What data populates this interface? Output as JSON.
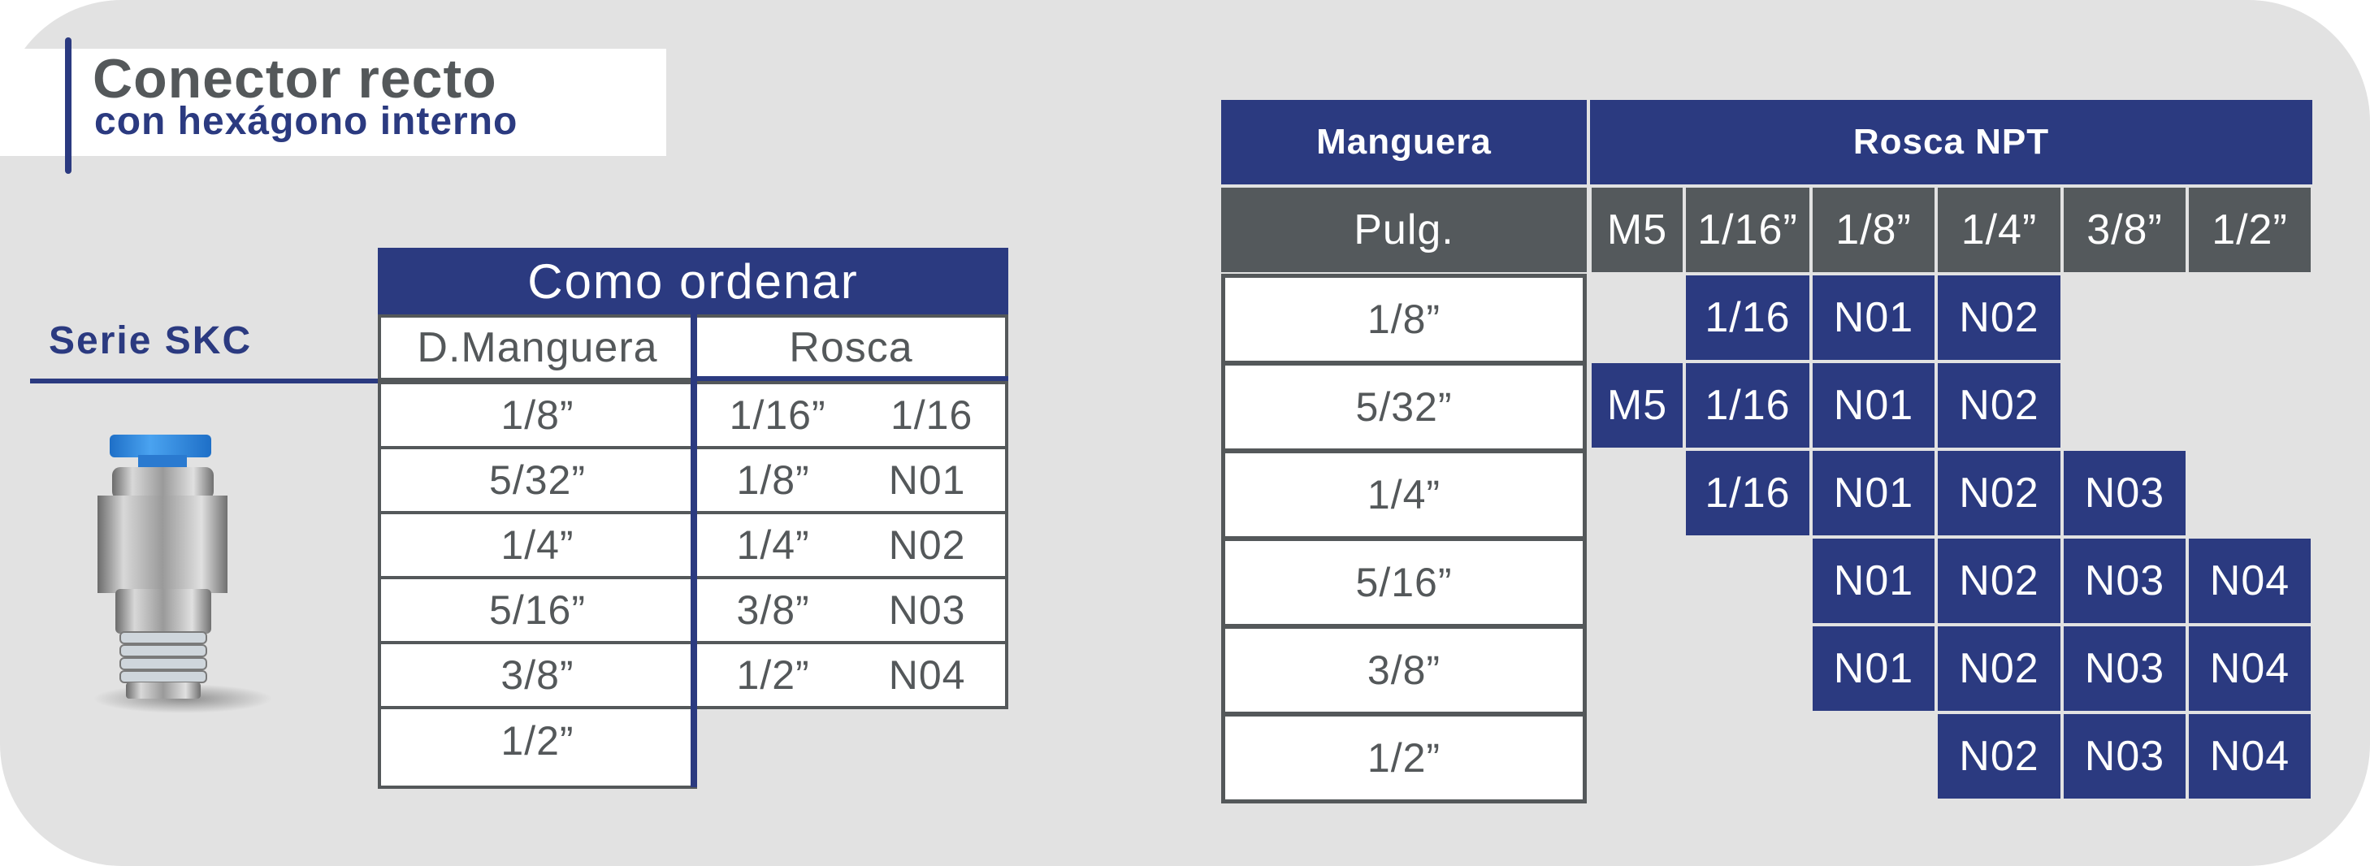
{
  "title": {
    "line1": "Conector recto",
    "line2": "con hexágono interno"
  },
  "series_label": "Serie SKC",
  "colors": {
    "brand_blue": "#2b3a80",
    "header_gray": "#54595c",
    "empty_cell": "#e2e2e2",
    "background": "#e2e2e2"
  },
  "order_table": {
    "title": "Como ordenar",
    "headers": [
      "D.Manguera",
      "Rosca"
    ],
    "manguera": [
      "1/8”",
      "5/32”",
      "1/4”",
      "5/16”",
      "3/8”",
      "1/2”"
    ],
    "rosca": [
      {
        "size": "1/16”",
        "code": "1/16"
      },
      {
        "size": "1/8”",
        "code": "N01"
      },
      {
        "size": "1/4”",
        "code": "N02"
      },
      {
        "size": "3/8”",
        "code": "N03"
      },
      {
        "size": "1/2”",
        "code": "N04"
      }
    ]
  },
  "compat_table": {
    "header_left": "Manguera",
    "header_right": "Rosca NPT",
    "unit_label": "Pulg.",
    "columns": [
      "M5",
      "1/16”",
      "1/8”",
      "1/4”",
      "3/8”",
      "1/2”"
    ],
    "rows": [
      {
        "label": "1/8”",
        "cells": [
          "",
          "1/16",
          "N01",
          "N02",
          "",
          ""
        ]
      },
      {
        "label": "5/32”",
        "cells": [
          "M5",
          "1/16",
          "N01",
          "N02",
          "",
          ""
        ]
      },
      {
        "label": "1/4”",
        "cells": [
          "",
          "1/16",
          "N01",
          "N02",
          "N03",
          ""
        ]
      },
      {
        "label": "5/16”",
        "cells": [
          "",
          "",
          "N01",
          "N02",
          "N03",
          "N04"
        ]
      },
      {
        "label": "3/8”",
        "cells": [
          "",
          "",
          "N01",
          "N02",
          "N03",
          "N04"
        ]
      },
      {
        "label": "1/2”",
        "cells": [
          "",
          "",
          "",
          "N02",
          "N03",
          "N04"
        ]
      }
    ]
  }
}
